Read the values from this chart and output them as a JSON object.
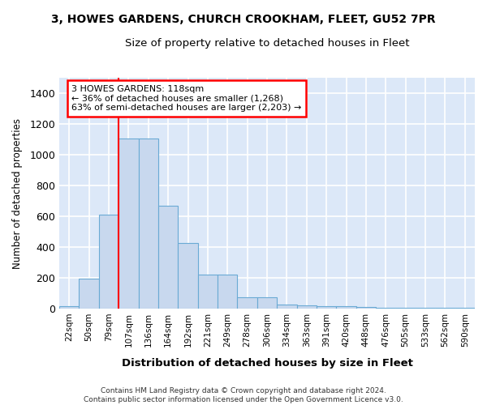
{
  "title": "3, HOWES GARDENS, CHURCH CROOKHAM, FLEET, GU52 7PR",
  "subtitle": "Size of property relative to detached houses in Fleet",
  "xlabel": "Distribution of detached houses by size in Fleet",
  "ylabel": "Number of detached properties",
  "bar_color": "#c8d8ee",
  "bar_edge_color": "#6aaad4",
  "plot_bg_color": "#dce8f8",
  "fig_bg_color": "#ffffff",
  "grid_color": "#ffffff",
  "categories": [
    "22sqm",
    "50sqm",
    "79sqm",
    "107sqm",
    "136sqm",
    "164sqm",
    "192sqm",
    "221sqm",
    "249sqm",
    "278sqm",
    "306sqm",
    "334sqm",
    "363sqm",
    "391sqm",
    "420sqm",
    "448sqm",
    "476sqm",
    "505sqm",
    "533sqm",
    "562sqm",
    "590sqm"
  ],
  "values": [
    15,
    195,
    610,
    1105,
    1105,
    670,
    430,
    220,
    220,
    75,
    75,
    28,
    22,
    15,
    15,
    10,
    8,
    8,
    5,
    5,
    5
  ],
  "ylim": [
    0,
    1500
  ],
  "yticks": [
    0,
    200,
    400,
    600,
    800,
    1000,
    1200,
    1400
  ],
  "red_line_index": 3,
  "annotation_line1": "3 HOWES GARDENS: 118sqm",
  "annotation_line2": "← 36% of detached houses are smaller (1,268)",
  "annotation_line3": "63% of semi-detached houses are larger (2,203) →",
  "footer_line1": "Contains HM Land Registry data © Crown copyright and database right 2024.",
  "footer_line2": "Contains public sector information licensed under the Open Government Licence v3.0."
}
